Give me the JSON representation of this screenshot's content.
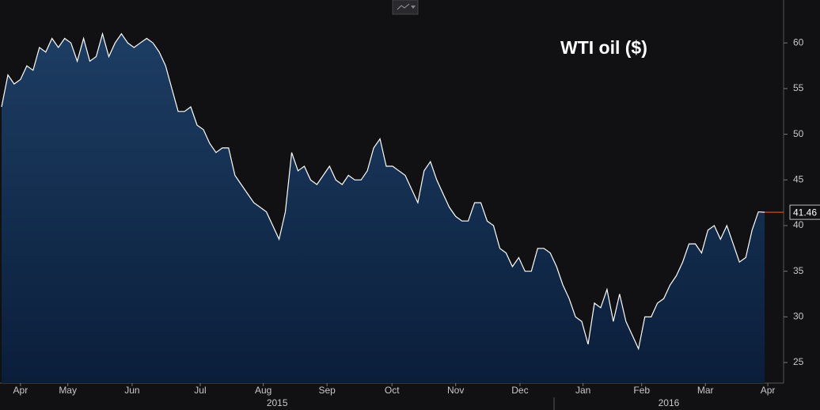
{
  "chart_data": {
    "type": "area",
    "title": "WTI oil ($)",
    "values": [
      53,
      56.5,
      55.5,
      56,
      57.5,
      57,
      59.5,
      59,
      60.5,
      59.5,
      60.5,
      60,
      58,
      60.5,
      58,
      58.5,
      61,
      58.5,
      60,
      61,
      60,
      59.5,
      60,
      60.5,
      60,
      59,
      57.5,
      55,
      52.5,
      52.5,
      53,
      51,
      50.5,
      49,
      48,
      48.5,
      48.5,
      45.5,
      44.5,
      43.5,
      42.5,
      42,
      41.5,
      40,
      38.5,
      41.5,
      48,
      46,
      46.5,
      45,
      44.5,
      45.5,
      46.5,
      45,
      44.5,
      45.5,
      45,
      45,
      46,
      48.5,
      49.5,
      46.5,
      46.5,
      46,
      45.5,
      44,
      42.5,
      46,
      47,
      45,
      43.5,
      42,
      41,
      40.5,
      40.5,
      42.5,
      42.5,
      40.5,
      40,
      37.5,
      37,
      35.5,
      36.5,
      35,
      35,
      37.5,
      37.5,
      37,
      35.5,
      33.5,
      32,
      30,
      29.5,
      27,
      31.5,
      31,
      33,
      29.5,
      32.5,
      29.5,
      28,
      26.5,
      30,
      30,
      31.5,
      32,
      33.5,
      34.5,
      36,
      38,
      38,
      37,
      39.5,
      40,
      38.5,
      40,
      38,
      36,
      36.5,
      39.5,
      41.5,
      41.46
    ],
    "line_color": "#ffffff",
    "area_color": "#12305a",
    "last_value_color": "#e8662a",
    "xlim": [
      0,
      124
    ],
    "xticks": [
      {
        "value": 3.0,
        "label": "Apr"
      },
      {
        "value": 10.5,
        "label": "May"
      },
      {
        "value": 20.7,
        "label": "Jun"
      },
      {
        "value": 31.5,
        "label": "Jul"
      },
      {
        "value": 41.5,
        "label": "Aug"
      },
      {
        "value": 51.6,
        "label": "Sep"
      },
      {
        "value": 61.9,
        "label": "Oct"
      },
      {
        "value": 72.0,
        "label": "Nov"
      },
      {
        "value": 82.2,
        "label": "Dec"
      },
      {
        "value": 92.2,
        "label": "Jan"
      },
      {
        "value": 101.5,
        "label": "Feb"
      },
      {
        "value": 111.6,
        "label": "Mar"
      },
      {
        "value": 121.5,
        "label": "Apr"
      }
    ],
    "year_ticks": [
      {
        "value": 43.7,
        "label": "2015"
      },
      {
        "value": 105.8,
        "label": "2016"
      }
    ],
    "ylim": [
      22.75,
      64.7
    ],
    "yticks": [
      25,
      30,
      35,
      40,
      45,
      50,
      55,
      60
    ]
  }
}
